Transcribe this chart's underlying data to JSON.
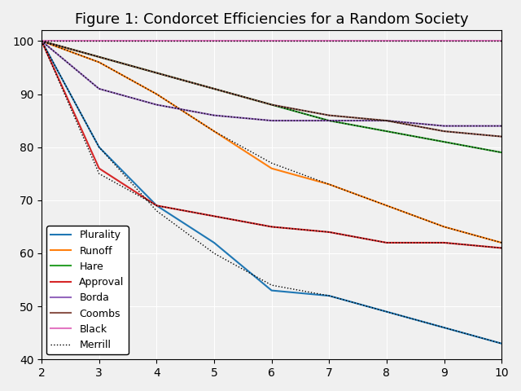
{
  "title": "Figure 1: Condorcet Efficiencies for a Random Society",
  "xlabel": "",
  "ylabel": "",
  "xlim": [
    2,
    10
  ],
  "ylim": [
    40,
    102
  ],
  "x": [
    2,
    3,
    4,
    5,
    6,
    7,
    8,
    9,
    10
  ],
  "plurality": [
    100,
    80,
    69,
    62,
    53,
    52,
    49,
    46,
    43
  ],
  "runoff": [
    100,
    96,
    90,
    83,
    76,
    73,
    69,
    65,
    62
  ],
  "hare": [
    100,
    97,
    94,
    91,
    88,
    85,
    83,
    81,
    79
  ],
  "approval": [
    100,
    76,
    69,
    67,
    65,
    64,
    62,
    62,
    61
  ],
  "borda": [
    100,
    91,
    88,
    86,
    85,
    85,
    85,
    84,
    84
  ],
  "coombs": [
    100,
    97,
    94,
    91,
    88,
    86,
    85,
    83,
    82
  ],
  "black": [
    100,
    100,
    100,
    100,
    100,
    100,
    100,
    100,
    100
  ],
  "merrill_plurality": [
    100,
    80,
    68,
    60,
    54,
    52,
    49,
    46,
    43
  ],
  "merrill_runoff": [
    100,
    96,
    90,
    83,
    77,
    73,
    69,
    65,
    62
  ],
  "merrill_hare": [
    100,
    97,
    94,
    91,
    88,
    85,
    83,
    81,
    79
  ],
  "merrill_approval": [
    100,
    75,
    69,
    67,
    65,
    64,
    62,
    62,
    61
  ],
  "merrill_borda": [
    100,
    91,
    88,
    86,
    85,
    85,
    85,
    84,
    84
  ],
  "merrill_coombs": [
    100,
    97,
    94,
    91,
    88,
    86,
    85,
    83,
    82
  ],
  "merrill_black": [
    100,
    100,
    100,
    100,
    100,
    100,
    100,
    100,
    100
  ],
  "colors": {
    "plurality": "#1f77b4",
    "runoff": "#ff7f0e",
    "hare": "#2ca02c",
    "approval": "#d62728",
    "borda": "#9467bd",
    "coombs": "#8c564b",
    "black": "#e377c2"
  },
  "yticks": [
    40,
    50,
    60,
    70,
    80,
    90,
    100
  ],
  "xticks": [
    2,
    3,
    4,
    5,
    6,
    7,
    8,
    9,
    10
  ],
  "grid": true,
  "bg_color": "#f0f0f0"
}
